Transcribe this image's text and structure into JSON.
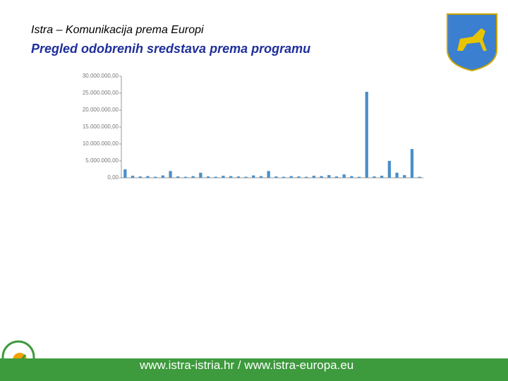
{
  "header": {
    "title": "Istra – Komunikacija prema Europi",
    "subtitle": "Pregled odobrenih sredstava prema programu"
  },
  "chart_data": {
    "type": "bar",
    "categories": [
      null,
      null,
      null,
      null,
      null,
      null,
      null,
      null,
      null,
      null,
      null,
      null,
      null,
      null,
      null,
      null,
      null,
      null,
      null,
      null,
      null,
      null,
      null,
      null,
      null,
      null,
      null,
      null,
      null,
      null,
      null,
      null,
      null,
      null,
      null,
      null,
      null,
      null,
      null,
      null
    ],
    "values": [
      2500000,
      600000,
      400000,
      500000,
      300000,
      700000,
      2000000,
      400000,
      300000,
      500000,
      1500000,
      400000,
      300000,
      600000,
      500000,
      400000,
      300000,
      700000,
      500000,
      2000000,
      400000,
      300000,
      500000,
      400000,
      300000,
      600000,
      500000,
      800000,
      400000,
      1000000,
      500000,
      300000,
      25400000,
      400000,
      600000,
      5000000,
      1500000,
      800000,
      8500000,
      300000
    ],
    "color": "#4a8fc8",
    "ylim": [
      0,
      30000000
    ],
    "yticks": [
      {
        "value": 0,
        "label": "0,00"
      },
      {
        "value": 5000000,
        "label": "5.000.000,00"
      },
      {
        "value": 10000000,
        "label": "10.000.000,00"
      },
      {
        "value": 15000000,
        "label": "15.000.000,00"
      },
      {
        "value": 20000000,
        "label": "20.000.000,00"
      },
      {
        "value": 25000000,
        "label": "25.000.000,00"
      },
      {
        "value": 30000000,
        "label": "30.000.000,00"
      }
    ],
    "grid": false
  },
  "footer": {
    "text": "www.istra-istria.hr / www.istra-europa.eu"
  }
}
